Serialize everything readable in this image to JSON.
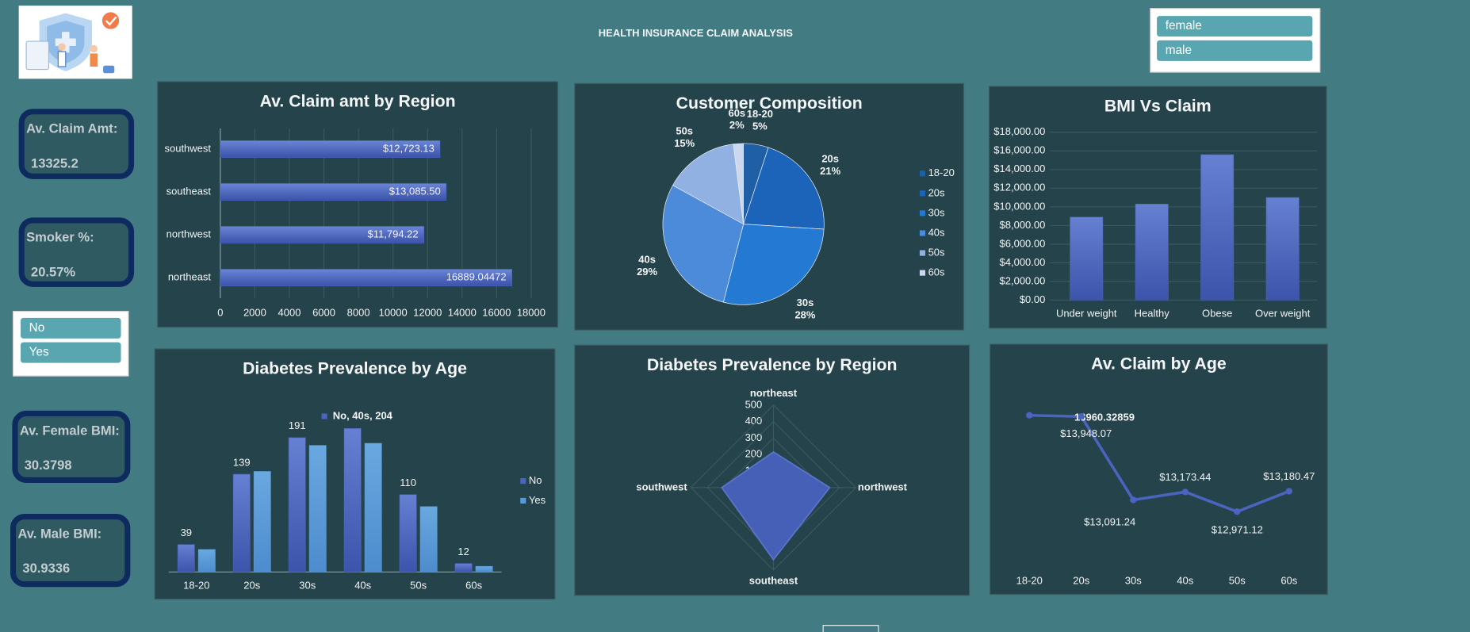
{
  "header": {
    "title": "HEALTH INSURANCE CLAIM ANALYSIS"
  },
  "gender_slicer": {
    "items": [
      "female",
      "male"
    ]
  },
  "smoker_slicer": {
    "items": [
      "No",
      "Yes"
    ]
  },
  "kpis": [
    {
      "label": "Av. Claim Amt:",
      "value": "13325.2"
    },
    {
      "label": "Smoker %:",
      "value": "20.57%"
    },
    {
      "label": "Av. Female BMI:",
      "value": "30.3798"
    },
    {
      "label": "Av. Male BMI:",
      "value": "30.9336"
    }
  ],
  "chart_data": [
    {
      "type": "hbar",
      "title": "Av. Claim amt by Region",
      "categories": [
        "southwest",
        "southeast",
        "northwest",
        "northeast"
      ],
      "values": [
        12723.13,
        13085.5,
        11794.22,
        16889.04472
      ],
      "value_labels": [
        "$12,723.13",
        "$13,085.50",
        "$11,794.22",
        "16889.04472"
      ],
      "color": "#4a64bf",
      "xlim": [
        0,
        19000
      ],
      "xticks": [
        0,
        2000,
        4000,
        6000,
        8000,
        10000,
        12000,
        14000,
        16000,
        18000
      ],
      "grid": true
    },
    {
      "type": "pie",
      "title": "Customer Composition",
      "categories": [
        "18-20",
        "20s",
        "30s",
        "40s",
        "50s",
        "60s"
      ],
      "values": [
        5,
        21,
        28,
        29,
        15,
        2
      ],
      "value_labels": [
        "5%",
        "21%",
        "28%",
        "29%",
        "15%",
        "2%"
      ],
      "colors": [
        "#1f5fa6",
        "#1b64b9",
        "#2479d2",
        "#4b8bd9",
        "#90b1e1",
        "#cbd8ee"
      ],
      "legend": "right"
    },
    {
      "type": "bar",
      "title": "BMI Vs Claim",
      "categories": [
        "Under weight",
        "Healthy",
        "Obese",
        "Over weight"
      ],
      "values": [
        8900,
        10300,
        15600,
        11000
      ],
      "color": "#4a64bf",
      "ylim": [
        0,
        18000
      ],
      "yticks": [
        {
          "value": 0,
          "label": "$0.00"
        },
        {
          "value": 2000,
          "label": "$2,000.00"
        },
        {
          "value": 4000,
          "label": "$4,000.00"
        },
        {
          "value": 6000,
          "label": "$6,000.00"
        },
        {
          "value": 8000,
          "label": "$8,000.00"
        },
        {
          "value": 10000,
          "label": "$10,000.00"
        },
        {
          "value": 12000,
          "label": "$12,000.00"
        },
        {
          "value": 14000,
          "label": "$14,000.00"
        },
        {
          "value": 16000,
          "label": "$16,000.00"
        },
        {
          "value": 18000,
          "label": "$18,000.00"
        }
      ],
      "grid": true
    },
    {
      "type": "grouped_bar",
      "title": "Diabetes Prevalence by Age",
      "categories": [
        "18-20",
        "20s",
        "30s",
        "40s",
        "50s",
        "60s"
      ],
      "series": [
        {
          "name": "No",
          "color": "#4a64bf",
          "values": [
            39,
            139,
            191,
            204,
            110,
            12
          ],
          "value_labels": [
            "39",
            "139",
            "191",
            "No, 40s, 204",
            "110",
            "12"
          ]
        },
        {
          "name": "Yes",
          "color": "#5b9ad6",
          "values": [
            32,
            143,
            180,
            183,
            93,
            8
          ]
        }
      ],
      "ylim": [
        0,
        250
      ],
      "legend": "right"
    },
    {
      "type": "radar",
      "title": "Diabetes Prevalence by Region",
      "categories": [
        "northeast",
        "northwest",
        "southeast",
        "southwest"
      ],
      "values": [
        216,
        341,
        437,
        313
      ],
      "color": "#4560b6",
      "rlim": [
        0,
        500
      ],
      "rticks": [
        0,
        100,
        200,
        300,
        400,
        500
      ]
    },
    {
      "type": "line",
      "title": "Av. Claim by Age",
      "categories": [
        "18-20",
        "20s",
        "30s",
        "40s",
        "50s",
        "60s"
      ],
      "values": [
        13960.32859,
        13948.07,
        13091.24,
        13173.44,
        12971.12,
        13180.47
      ],
      "value_labels": [
        "13960.32859",
        "$13,948.07",
        "$13,091.24",
        "$13,173.44",
        "$12,971.12",
        "$13,180.47"
      ],
      "color": "#4a64bf",
      "ylim": [
        12400,
        14200
      ]
    }
  ]
}
